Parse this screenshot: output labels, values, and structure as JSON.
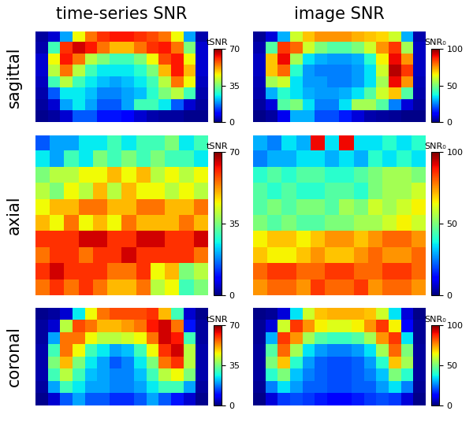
{
  "column_titles": [
    "time-series SNR",
    "image SNR"
  ],
  "row_labels": [
    "sagittal",
    "axial",
    "coronal"
  ],
  "chart_data": [
    {
      "type": "heatmap",
      "tick_labels": false,
      "colorbar": {
        "label": "tSNR",
        "range": [
          0,
          70
        ],
        "ticks": [
          0,
          35,
          70
        ]
      },
      "cells": [
        [
          2,
          5,
          20,
          45,
          55,
          60,
          62,
          62,
          60,
          58,
          55,
          45,
          20,
          3
        ],
        [
          3,
          30,
          60,
          65,
          62,
          55,
          50,
          50,
          55,
          60,
          62,
          55,
          35,
          5
        ],
        [
          5,
          45,
          62,
          55,
          40,
          35,
          30,
          30,
          35,
          45,
          58,
          62,
          45,
          5
        ],
        [
          5,
          40,
          55,
          40,
          30,
          25,
          25,
          25,
          28,
          35,
          50,
          62,
          50,
          5
        ],
        [
          4,
          30,
          40,
          30,
          25,
          22,
          20,
          22,
          25,
          30,
          40,
          55,
          45,
          4
        ],
        [
          3,
          15,
          25,
          25,
          22,
          18,
          18,
          20,
          22,
          28,
          35,
          40,
          30,
          3
        ],
        [
          2,
          5,
          20,
          25,
          20,
          15,
          15,
          20,
          30,
          30,
          25,
          15,
          5,
          2
        ],
        [
          1,
          2,
          5,
          15,
          15,
          10,
          10,
          8,
          5,
          3,
          2,
          2,
          1,
          1
        ]
      ]
    },
    {
      "type": "heatmap",
      "tick_labels": false,
      "colorbar": {
        "label": "SNR₀",
        "range": [
          0,
          100
        ],
        "ticks": [
          0,
          50,
          100
        ]
      },
      "cells": [
        [
          2,
          8,
          30,
          60,
          70,
          75,
          75,
          75,
          72,
          70,
          68,
          60,
          30,
          4
        ],
        [
          4,
          45,
          85,
          80,
          60,
          50,
          45,
          45,
          50,
          60,
          75,
          85,
          55,
          6
        ],
        [
          6,
          70,
          90,
          55,
          35,
          30,
          28,
          28,
          30,
          40,
          65,
          90,
          75,
          6
        ],
        [
          6,
          70,
          80,
          40,
          28,
          25,
          25,
          25,
          28,
          35,
          60,
          95,
          85,
          6
        ],
        [
          5,
          55,
          60,
          35,
          28,
          28,
          25,
          25,
          28,
          35,
          55,
          90,
          75,
          5
        ],
        [
          4,
          30,
          40,
          35,
          30,
          28,
          28,
          30,
          35,
          45,
          60,
          70,
          45,
          4
        ],
        [
          3,
          8,
          45,
          50,
          35,
          25,
          25,
          35,
          55,
          55,
          45,
          25,
          8,
          3
        ],
        [
          1,
          3,
          10,
          30,
          30,
          20,
          20,
          15,
          8,
          4,
          3,
          2,
          1,
          1
        ]
      ]
    },
    {
      "type": "heatmap",
      "tick_labels": false,
      "colorbar": {
        "label": "tSNR",
        "range": [
          0,
          70
        ],
        "ticks": [
          0,
          35,
          70
        ]
      },
      "cells": [
        [
          15,
          20,
          20,
          25,
          25,
          30,
          25,
          30,
          30,
          35,
          25,
          30
        ],
        [
          25,
          20,
          30,
          25,
          35,
          30,
          35,
          30,
          35,
          30,
          30,
          25
        ],
        [
          35,
          40,
          40,
          45,
          45,
          50,
          45,
          50,
          40,
          45,
          40,
          45
        ],
        [
          40,
          35,
          45,
          40,
          50,
          40,
          50,
          45,
          45,
          40,
          45,
          40
        ],
        [
          45,
          50,
          50,
          55,
          55,
          50,
          50,
          55,
          55,
          50,
          50,
          55
        ],
        [
          50,
          45,
          55,
          45,
          50,
          45,
          55,
          50,
          50,
          50,
          55,
          50
        ],
        [
          60,
          60,
          60,
          65,
          65,
          60,
          60,
          65,
          65,
          60,
          60,
          65
        ],
        [
          55,
          60,
          60,
          55,
          60,
          60,
          65,
          60,
          60,
          60,
          60,
          55
        ],
        [
          60,
          65,
          60,
          60,
          60,
          55,
          55,
          60,
          45,
          50,
          35,
          40
        ],
        [
          55,
          60,
          55,
          60,
          55,
          50,
          50,
          55,
          40,
          45,
          30,
          35
        ]
      ]
    },
    {
      "type": "heatmap",
      "tick_labels": false,
      "colorbar": {
        "label": "SNR₀",
        "range": [
          0,
          100
        ],
        "ticks": [
          0,
          50,
          100
        ]
      },
      "cells": [
        [
          30,
          25,
          35,
          30,
          90,
          35,
          90,
          35,
          35,
          40,
          35,
          40
        ],
        [
          25,
          30,
          30,
          35,
          35,
          30,
          35,
          30,
          40,
          35,
          40,
          35
        ],
        [
          40,
          45,
          40,
          45,
          45,
          40,
          40,
          45,
          50,
          55,
          55,
          50
        ],
        [
          45,
          40,
          45,
          40,
          40,
          45,
          45,
          40,
          50,
          55,
          55,
          60
        ],
        [
          45,
          50,
          45,
          50,
          50,
          45,
          55,
          50,
          60,
          55,
          60,
          65
        ],
        [
          50,
          45,
          50,
          45,
          45,
          50,
          50,
          55,
          55,
          60,
          65,
          60
        ],
        [
          65,
          70,
          70,
          65,
          70,
          75,
          75,
          70,
          75,
          80,
          80,
          75
        ],
        [
          70,
          65,
          65,
          70,
          75,
          70,
          70,
          75,
          80,
          75,
          75,
          80
        ],
        [
          80,
          85,
          85,
          80,
          80,
          85,
          85,
          80,
          80,
          85,
          85,
          80
        ],
        [
          75,
          80,
          80,
          75,
          85,
          80,
          80,
          85,
          75,
          80,
          80,
          75
        ]
      ]
    },
    {
      "type": "heatmap",
      "tick_labels": false,
      "colorbar": {
        "label": "tSNR",
        "range": [
          0,
          70
        ],
        "ticks": [
          0,
          35,
          70
        ]
      },
      "cells": [
        [
          1,
          2,
          5,
          25,
          45,
          55,
          58,
          58,
          58,
          60,
          50,
          30,
          5,
          1
        ],
        [
          2,
          5,
          40,
          58,
          55,
          50,
          50,
          52,
          55,
          62,
          65,
          55,
          10,
          2
        ],
        [
          2,
          20,
          55,
          55,
          45,
          40,
          40,
          42,
          45,
          55,
          65,
          62,
          30,
          2
        ],
        [
          3,
          30,
          55,
          45,
          30,
          25,
          20,
          22,
          30,
          45,
          60,
          65,
          40,
          3
        ],
        [
          3,
          35,
          50,
          35,
          25,
          20,
          15,
          18,
          25,
          35,
          55,
          60,
          40,
          3
        ],
        [
          3,
          30,
          40,
          30,
          22,
          20,
          18,
          18,
          22,
          30,
          40,
          45,
          35,
          3
        ],
        [
          2,
          20,
          30,
          25,
          20,
          20,
          18,
          18,
          20,
          25,
          30,
          30,
          20,
          2
        ],
        [
          1,
          5,
          15,
          20,
          15,
          15,
          12,
          12,
          15,
          20,
          15,
          10,
          5,
          1
        ]
      ]
    },
    {
      "type": "heatmap",
      "tick_labels": false,
      "colorbar": {
        "label": "SNR₀",
        "range": [
          0,
          100
        ],
        "ticks": [
          0,
          50,
          100
        ]
      },
      "cells": [
        [
          1,
          2,
          8,
          35,
          60,
          70,
          72,
          72,
          72,
          70,
          60,
          35,
          8,
          1
        ],
        [
          2,
          8,
          60,
          85,
          75,
          65,
          62,
          62,
          65,
          75,
          85,
          65,
          12,
          2
        ],
        [
          2,
          30,
          85,
          75,
          55,
          45,
          42,
          42,
          45,
          55,
          75,
          85,
          35,
          2
        ],
        [
          3,
          45,
          80,
          55,
          35,
          28,
          25,
          25,
          28,
          35,
          55,
          80,
          50,
          3
        ],
        [
          3,
          50,
          70,
          40,
          28,
          22,
          20,
          20,
          22,
          28,
          40,
          70,
          55,
          3
        ],
        [
          3,
          40,
          50,
          32,
          25,
          22,
          20,
          20,
          22,
          25,
          32,
          50,
          40,
          3
        ],
        [
          2,
          25,
          35,
          28,
          22,
          22,
          20,
          20,
          22,
          22,
          28,
          35,
          25,
          2
        ],
        [
          1,
          8,
          18,
          20,
          18,
          15,
          12,
          12,
          15,
          18,
          20,
          18,
          8,
          1
        ]
      ]
    }
  ]
}
